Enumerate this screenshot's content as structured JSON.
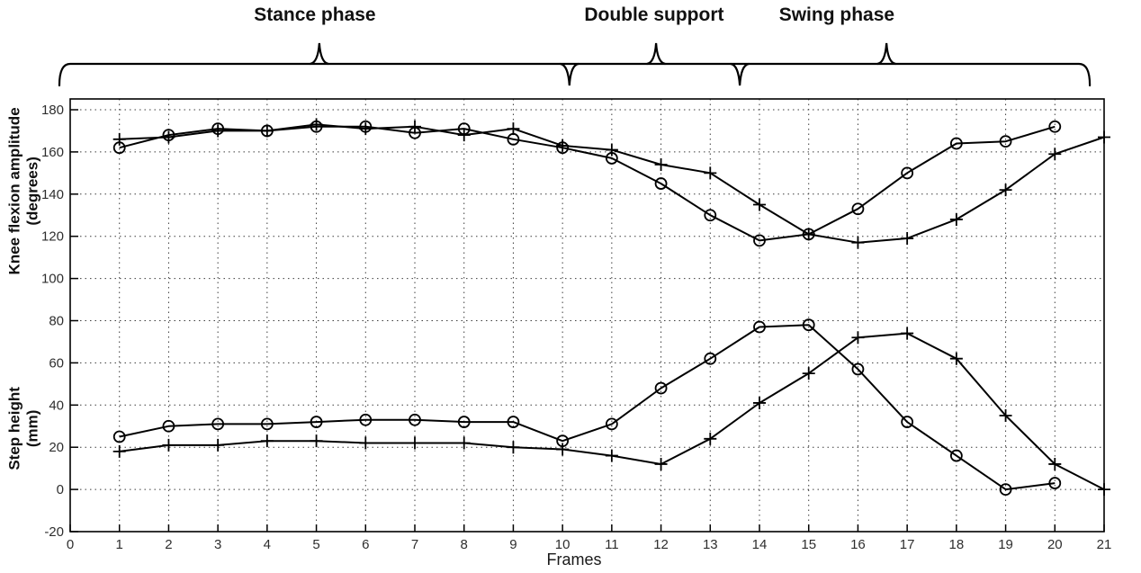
{
  "chart_data": {
    "type": "line",
    "title": "",
    "xlabel": "Frames",
    "ylabels": [
      {
        "line1": "Knee flexion amplitude",
        "line2": "(degrees)"
      },
      {
        "line1": "Step height",
        "line2": "(mm)"
      }
    ],
    "xlim": [
      0,
      21
    ],
    "ylim": [
      -20,
      185
    ],
    "x_ticks": [
      0,
      1,
      2,
      3,
      4,
      5,
      6,
      7,
      8,
      9,
      10,
      11,
      12,
      13,
      14,
      15,
      16,
      17,
      18,
      19,
      20,
      21
    ],
    "y_ticks": [
      -20,
      0,
      20,
      40,
      60,
      80,
      100,
      120,
      140,
      160,
      180
    ],
    "grid": true,
    "legend": "none",
    "line_color": "#000000",
    "background_color": "#ffffff",
    "phases": [
      {
        "label": "Stance phase",
        "start_frame": -0.22,
        "end_frame": 10.14,
        "tip_frame": 5.06,
        "label_center_frame": 4.97
      },
      {
        "label": "Double support",
        "start_frame": 10.14,
        "end_frame": 13.6,
        "tip_frame": 11.9,
        "label_center_frame": 11.86
      },
      {
        "label": "Swing phase",
        "start_frame": 13.6,
        "end_frame": 20.71,
        "tip_frame": 16.58,
        "label_center_frame": 15.57
      }
    ],
    "series": [
      {
        "name": "knee_flexion_circle_series",
        "group": "Knee flexion amplitude (degrees)",
        "marker": "circle",
        "x": [
          1,
          2,
          3,
          4,
          5,
          6,
          7,
          8,
          9,
          10,
          11,
          12,
          13,
          14,
          15,
          16,
          17,
          18,
          19,
          20
        ],
        "y": [
          162,
          168,
          171,
          170,
          172,
          172,
          169,
          171,
          166,
          162,
          157,
          145,
          130,
          118,
          121,
          133,
          150,
          164,
          165,
          172
        ]
      },
      {
        "name": "knee_flexion_plus_series",
        "group": "Knee flexion amplitude (degrees)",
        "marker": "plus",
        "x": [
          1,
          2,
          3,
          4,
          5,
          6,
          7,
          8,
          9,
          10,
          11,
          12,
          13,
          14,
          15,
          16,
          17,
          18,
          19,
          20,
          21
        ],
        "y": [
          166,
          167,
          170,
          170,
          173,
          171,
          172,
          168,
          171,
          163,
          161,
          154,
          150,
          135,
          121,
          117,
          119,
          128,
          142,
          159,
          167
        ]
      },
      {
        "name": "step_height_circle_series",
        "group": "Step height (mm)",
        "marker": "circle",
        "x": [
          1,
          2,
          3,
          4,
          5,
          6,
          7,
          8,
          9,
          10,
          11,
          12,
          13,
          14,
          15,
          16,
          17,
          18,
          19,
          20
        ],
        "y": [
          25,
          30,
          31,
          31,
          32,
          33,
          33,
          32,
          32,
          23,
          31,
          48,
          62,
          77,
          78,
          57,
          32,
          16,
          0,
          3
        ]
      },
      {
        "name": "step_height_plus_series",
        "group": "Step height (mm)",
        "marker": "plus",
        "x": [
          1,
          2,
          3,
          4,
          5,
          6,
          7,
          8,
          9,
          10,
          11,
          12,
          13,
          14,
          15,
          16,
          17,
          18,
          19,
          20,
          21
        ],
        "y": [
          18,
          21,
          21,
          23,
          23,
          22,
          22,
          22,
          20,
          19,
          16,
          12,
          24,
          41,
          55,
          72,
          74,
          62,
          35,
          12,
          0
        ]
      }
    ]
  }
}
